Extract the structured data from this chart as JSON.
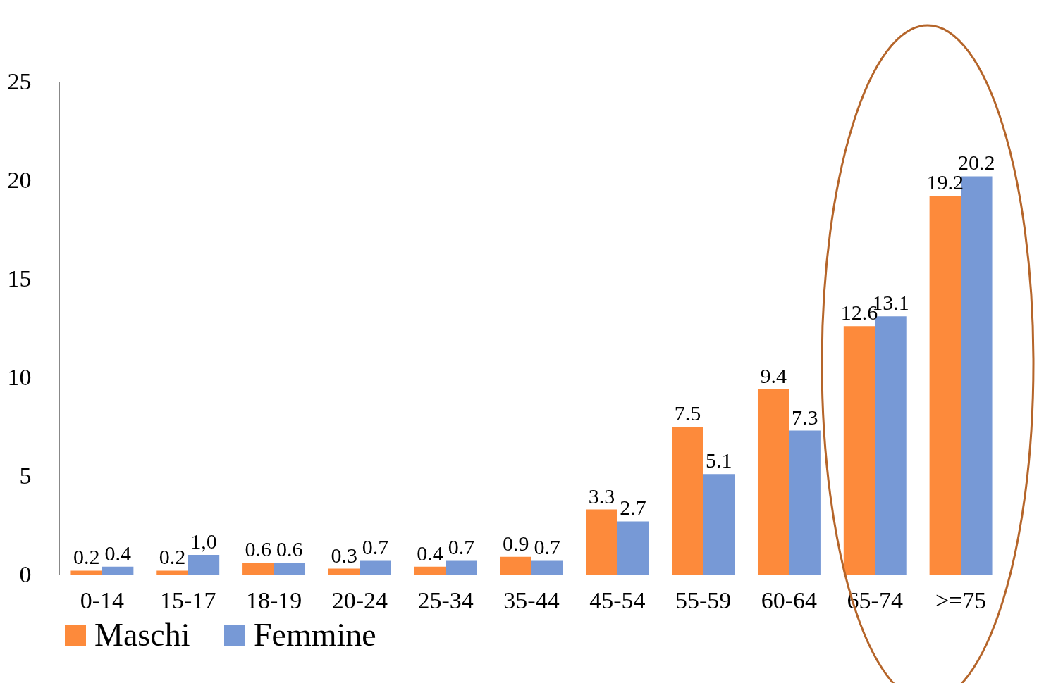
{
  "chart_data": {
    "type": "bar",
    "categories": [
      "0-14",
      "15-17",
      "18-19",
      "20-24",
      "25-34",
      "35-44",
      "45-54",
      "55-59",
      "60-64",
      "65-74",
      ">=75"
    ],
    "series": [
      {
        "name": "Maschi",
        "color": "#fd8a3b",
        "values": [
          0.2,
          0.2,
          0.6,
          0.3,
          0.4,
          0.9,
          3.3,
          7.5,
          9.4,
          12.6,
          19.2
        ],
        "value_labels": [
          "0.2",
          "0.2",
          "0.6",
          "0.3",
          "0.4",
          "0.9",
          "3.3",
          "7.5",
          "9.4",
          "12.6",
          "19.2"
        ]
      },
      {
        "name": "Femmine",
        "color": "#7799d6",
        "values": [
          0.4,
          1.0,
          0.6,
          0.7,
          0.7,
          0.7,
          2.7,
          5.1,
          7.3,
          13.1,
          20.2
        ],
        "value_labels": [
          "0.4",
          "1,0",
          "0.6",
          "0.7",
          "0.7",
          "0.7",
          "2.7",
          "5.1",
          "7.3",
          "13.1",
          "20.2"
        ]
      }
    ],
    "ylim": [
      0,
      25
    ],
    "yticks": [
      0,
      5,
      10,
      15,
      20,
      25
    ],
    "grid": false,
    "legend": "bottom"
  }
}
